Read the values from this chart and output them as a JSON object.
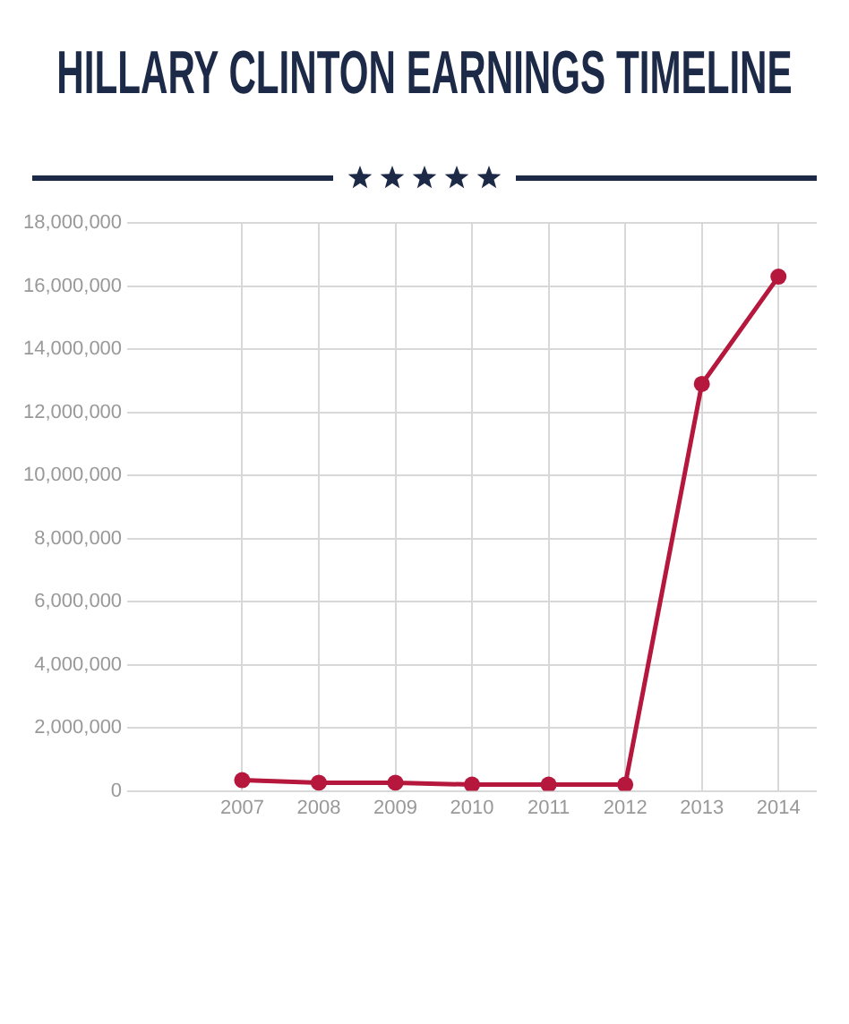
{
  "chart_data": {
    "type": "line",
    "title": "HILLARY CLINTON EARNINGS TIMELINE",
    "x": [
      2007,
      2008,
      2009,
      2010,
      2011,
      2012,
      2013,
      2014
    ],
    "values": [
      340000,
      260000,
      260000,
      200000,
      200000,
      200000,
      12900000,
      16300000
    ],
    "color": "#b5173d",
    "marker": "circle",
    "line_style": "solid",
    "xlim": [
      2005.5,
      2014.5
    ],
    "xticks": [
      2007,
      2008,
      2009,
      2010,
      2011,
      2012,
      2013,
      2014
    ],
    "ylim": [
      0,
      18000000
    ],
    "yticks": [
      0,
      {
        "value": 2000000,
        "label": "2,000,000"
      },
      {
        "value": 4000000,
        "label": "4,000,000"
      },
      {
        "value": 6000000,
        "label": "6,000,000"
      },
      {
        "value": 8000000,
        "label": "8,000,000"
      },
      {
        "value": 10000000,
        "label": "10,000,000"
      },
      {
        "value": 12000000,
        "label": "12,000,000"
      },
      {
        "value": 14000000,
        "label": "14,000,000"
      },
      {
        "value": 16000000,
        "label": "16,000,000"
      },
      {
        "value": 18000000,
        "label": "18,000,000"
      }
    ],
    "grid": true,
    "legend": false
  }
}
